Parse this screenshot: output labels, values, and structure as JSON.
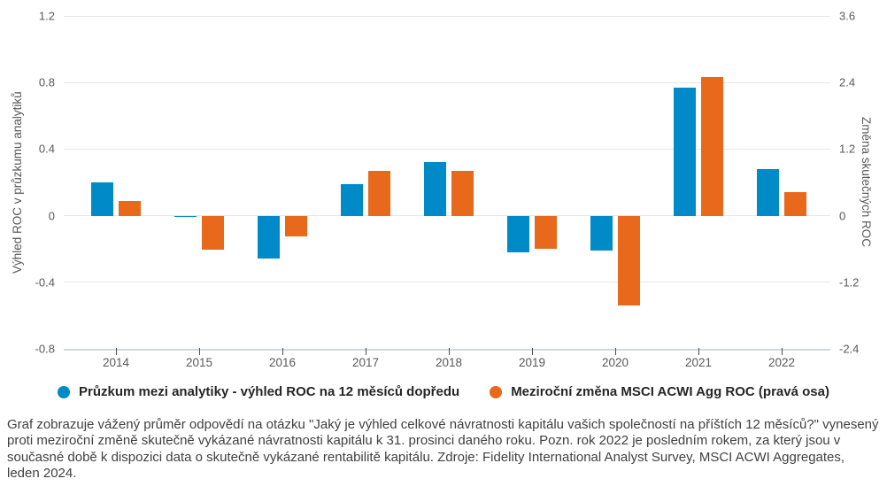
{
  "chart_data": {
    "type": "bar",
    "categories": [
      "2014",
      "2015",
      "2016",
      "2017",
      "2018",
      "2019",
      "2020",
      "2021",
      "2022"
    ],
    "series": [
      {
        "name": "Průzkum mezi analytiky - výhled ROC na 12 měsíců dopředu",
        "axis": "left",
        "color": "#008AC7",
        "values": [
          0.2,
          -0.01,
          -0.26,
          0.19,
          0.32,
          -0.22,
          -0.21,
          0.77,
          0.28
        ]
      },
      {
        "name": "Meziroční změna MSCI ACWI Agg ROC (pravá osa)",
        "axis": "right",
        "color": "#E8681C",
        "values": [
          0.27,
          -0.61,
          -0.37,
          0.81,
          0.8,
          -0.59,
          -1.62,
          2.5,
          0.42
        ]
      }
    ],
    "left_axis": {
      "label": "Výhled ROC v průzkumu analytiků",
      "ticks": [
        1.2,
        0.8,
        0.4,
        0,
        -0.4,
        -0.8
      ],
      "range": [
        -0.8,
        1.2
      ]
    },
    "right_axis": {
      "label": "Změna skutečných ROC",
      "ticks": [
        3.6,
        2.4,
        1.2,
        0,
        -1.2,
        -2.4
      ],
      "range": [
        -2.4,
        3.6
      ]
    },
    "grid": true,
    "legend_position": "bottom"
  },
  "caption": "Graf zobrazuje vážený průměr odpovědí na otázku \"Jaký je výhled celkové návratnosti kapitálu vašich společností na příštích 12 měsíců?\" vynesený proti meziroční změně skutečně vykázané návratnosti kapitálu k 31. prosinci daného roku. Pozn. rok 2022 je posledním rokem, za který jsou v současné době k dispozici data o skutečně vykázané rentabilitě kapitálu. Zdroje: Fidelity International Analyst Survey, MSCI ACWI Aggregates, leden 2024.",
  "colors": {
    "series_blue": "#008AC7",
    "series_orange": "#E8681C",
    "gridline": "#e7e7e7",
    "axis_line": "#d4d7dc",
    "tick_label": "#595959",
    "legend_text": "#262626",
    "caption_text": "#404040"
  }
}
